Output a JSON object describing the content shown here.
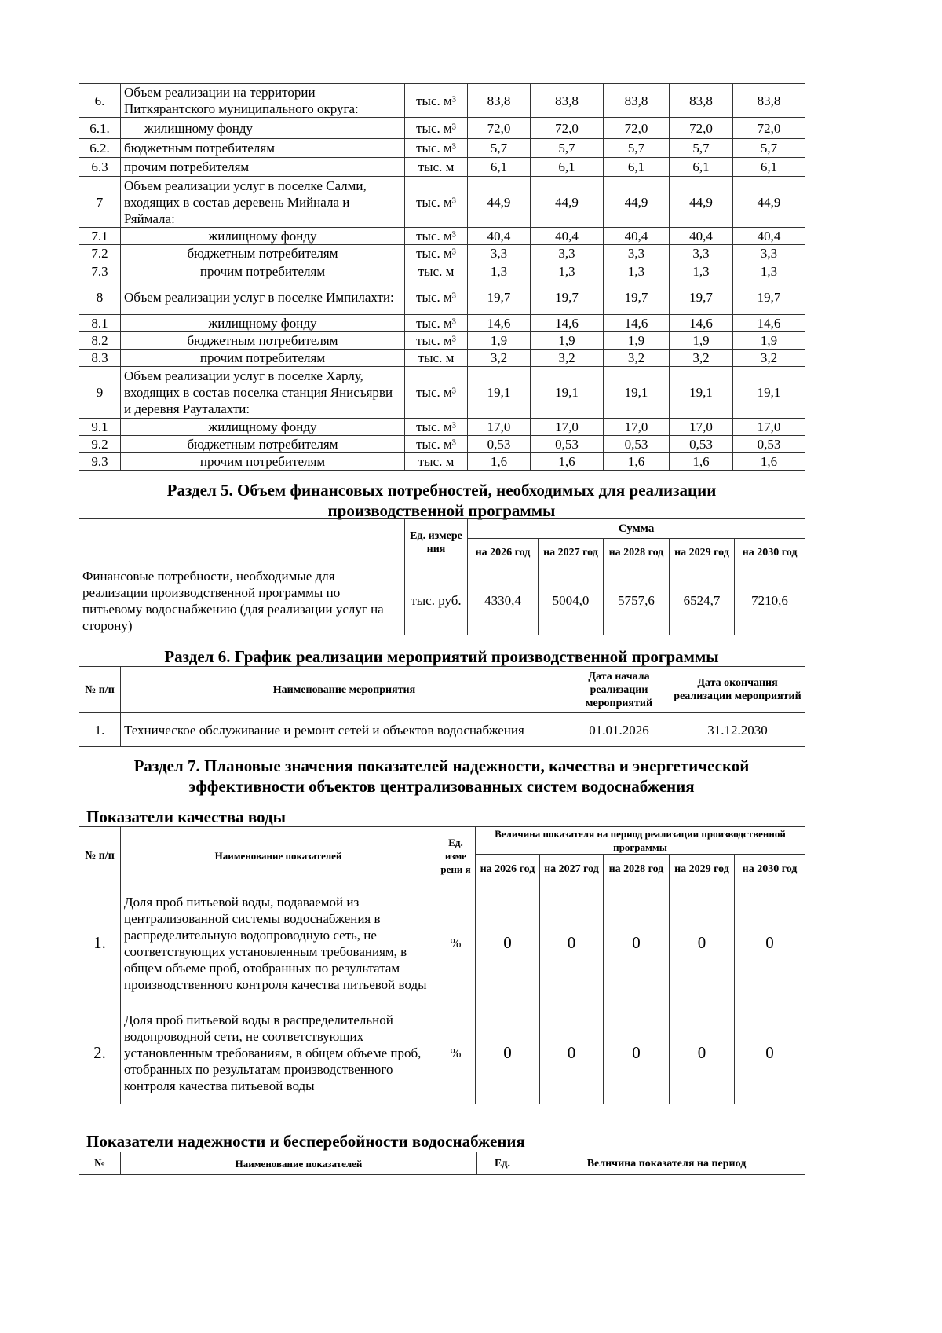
{
  "volume_table": {
    "rows": [
      {
        "num": "6.",
        "name": "Объем реализации на территории Питкярантского муниципального округа:",
        "unit": "тыс. м³",
        "values": [
          "83,8",
          "83,8",
          "83,8",
          "83,8",
          "83,8"
        ],
        "style": "l"
      },
      {
        "num": "6.1.",
        "name": "жилищному фонду",
        "unit": "тыс. м³",
        "values": [
          "72,0",
          "72,0",
          "72,0",
          "72,0",
          "72,0"
        ],
        "style": "ind"
      },
      {
        "num": "6.2.",
        "name": "бюджетным потребителям",
        "unit": "тыс. м³",
        "values": [
          "5,7",
          "5,7",
          "5,7",
          "5,7",
          "5,7"
        ],
        "style": "l"
      },
      {
        "num": "6.3",
        "name": "прочим потребителям",
        "unit": "тыс. м",
        "values": [
          "6,1",
          "6,1",
          "6,1",
          "6,1",
          "6,1"
        ],
        "style": "l"
      },
      {
        "num": "7",
        "name": "Объем реализации услуг в поселке Салми, входящих в состав деревень Мийнала и Ряймала:",
        "unit": "тыс. м³",
        "values": [
          "44,9",
          "44,9",
          "44,9",
          "44,9",
          "44,9"
        ],
        "style": "l"
      },
      {
        "num": "7.1",
        "name": "жилищному фонду",
        "unit": "тыс. м³",
        "values": [
          "40,4",
          "40,4",
          "40,4",
          "40,4",
          "40,4"
        ],
        "style": "c"
      },
      {
        "num": "7.2",
        "name": "бюджетным потребителям",
        "unit": "тыс. м³",
        "values": [
          "3,3",
          "3,3",
          "3,3",
          "3,3",
          "3,3"
        ],
        "style": "c"
      },
      {
        "num": "7.3",
        "name": "прочим потребителям",
        "unit": "тыс. м",
        "values": [
          "1,3",
          "1,3",
          "1,3",
          "1,3",
          "1,3"
        ],
        "style": "c"
      },
      {
        "num": "8",
        "name": "Объем реализации услуг в поселке Импилахти:",
        "unit": "тыс. м³",
        "values": [
          "19,7",
          "19,7",
          "19,7",
          "19,7",
          "19,7"
        ],
        "style": "l"
      },
      {
        "num": "8.1",
        "name": "жилищному фонду",
        "unit": "тыс. м³",
        "values": [
          "14,6",
          "14,6",
          "14,6",
          "14,6",
          "14,6"
        ],
        "style": "c"
      },
      {
        "num": "8.2",
        "name": "бюджетным потребителям",
        "unit": "тыс. м³",
        "values": [
          "1,9",
          "1,9",
          "1,9",
          "1,9",
          "1,9"
        ],
        "style": "c"
      },
      {
        "num": "8.3",
        "name": "прочим потребителям",
        "unit": "тыс. м",
        "values": [
          "3,2",
          "3,2",
          "3,2",
          "3,2",
          "3,2"
        ],
        "style": "c"
      },
      {
        "num": "9",
        "name": "Объем реализации услуг в поселке Харлу, входящих в состав поселка станция Янисъярви и деревня Рауталахти:",
        "unit": "тыс. м³",
        "values": [
          "19,1",
          "19,1",
          "19,1",
          "19,1",
          "19,1"
        ],
        "style": "l"
      },
      {
        "num": "9.1",
        "name": "жилищному фонду",
        "unit": "тыс. м³",
        "values": [
          "17,0",
          "17,0",
          "17,0",
          "17,0",
          "17,0"
        ],
        "style": "c"
      },
      {
        "num": "9.2",
        "name": "бюджетным потребителям",
        "unit": "тыс. м³",
        "values": [
          "0,53",
          "0,53",
          "0,53",
          "0,53",
          "0,53"
        ],
        "style": "c"
      },
      {
        "num": "9.3",
        "name": "прочим потребителям",
        "unit": "тыс. м",
        "values": [
          "1,6",
          "1,6",
          "1,6",
          "1,6",
          "1,6"
        ],
        "style": "c"
      }
    ]
  },
  "section5": {
    "title": "Раздел 5. Объем финансовых потребностей, необходимых для реализации производственной программы",
    "unit_header": "Ед. измере ния",
    "sum_header": "Сумма",
    "years": [
      "на 2026 год",
      "на 2027 год",
      "на 2028 год",
      "на 2029 год",
      "на 2030 год"
    ],
    "row": {
      "name": "Финансовые потребности, необходимые для реализации производственной программы по питьевому водоснабжению (для реализации услуг на сторону)",
      "unit": "тыс. руб.",
      "values": [
        "4330,4",
        "5004,0",
        "5757,6",
        "6524,7",
        "7210,6"
      ]
    }
  },
  "section6": {
    "title": "Раздел 6.  График реализации мероприятий производственной программы",
    "headers": [
      "№ п/п",
      "Наименование мероприятия",
      "Дата начала реализации мероприятий",
      "Дата окончания реализации мероприятий"
    ],
    "row": {
      "num": "1.",
      "name": "Техническое обслуживание и ремонт сетей и объектов водоснабжения",
      "start": "01.01.2026",
      "end": "31.12.2030"
    }
  },
  "section7": {
    "title": "Раздел 7.  Плановые значения показателей надежности, качества и энергетической эффективности объектов централизованных систем водоснабжения",
    "quality": {
      "subtitle": "Показатели качества воды",
      "headers": {
        "num": "№ п/п",
        "name": "Наименование показателей",
        "unit": "Ед. изме рени я",
        "period": "Величина показателя на период реализации производственной программы"
      },
      "years": [
        "на 2026 год",
        "на 2027 год",
        "на 2028 год",
        "на 2029 год",
        "на 2030 год"
      ],
      "rows": [
        {
          "num": "1.",
          "name": "Доля проб питьевой воды, подаваемой из централизованной системы водоснабжения в распределительную водопроводную сеть, не соответствующих установленным требованиям, в общем объеме проб, отобранных по результатам производственного контроля качества питьевой воды",
          "unit": "%",
          "values": [
            "0",
            "0",
            "0",
            "0",
            "0"
          ]
        },
        {
          "num": "2.",
          "name": "Доля проб питьевой воды в распределительной водопроводной сети, не соответствующих установленным требованиям, в общем объеме проб, отобранных по результатам производственного контроля качества питьевой воды",
          "unit": "%",
          "values": [
            "0",
            "0",
            "0",
            "0",
            "0"
          ]
        }
      ]
    },
    "reliability": {
      "subtitle": "Показатели надежности и бесперебойности водоснабжения",
      "headers": {
        "num": "№",
        "name": "Наименование показателей",
        "unit": "Ед.",
        "period": "Величина показателя на период"
      }
    }
  }
}
